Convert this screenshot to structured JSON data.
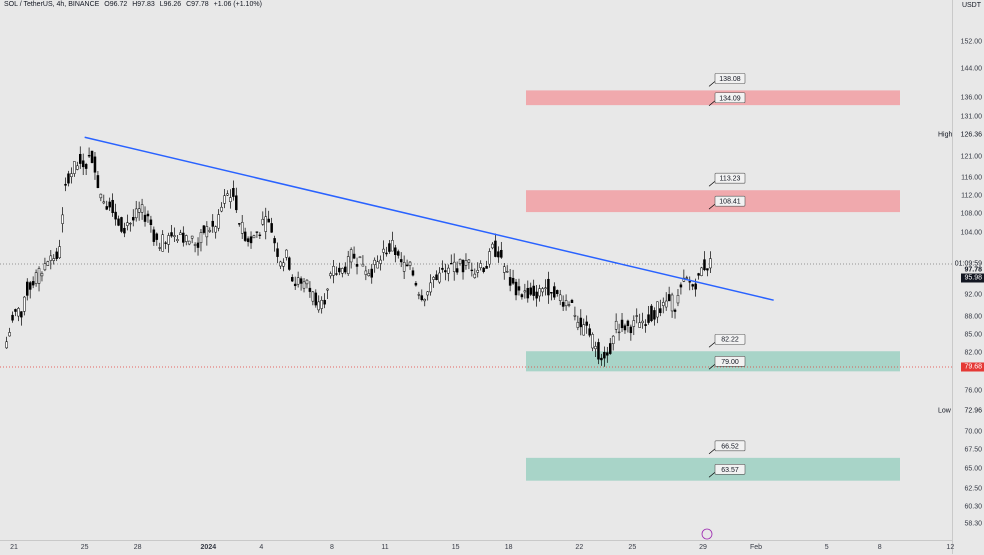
{
  "legend": {
    "symbol": "SOL / TetherUS, 4h, BINANCE",
    "open": "O96.72",
    "high": "H97.83",
    "low": "L96.26",
    "close": "C97.78",
    "change": "+1.06 (+1.10%)"
  },
  "currency": "USDT",
  "chart_data": {
    "type": "candlestick",
    "symbol": "SOL / TetherUS",
    "interval": "4h",
    "exchange": "BINANCE",
    "x_ticks": [
      "21",
      "25",
      "28",
      "2024",
      "4",
      "8",
      "11",
      "15",
      "18",
      "22",
      "25",
      "29",
      "Feb",
      "5",
      "8",
      "12"
    ],
    "y_ticks": [
      "152.00",
      "144.00",
      "136.00",
      "131.00",
      "121.00",
      "116.00",
      "112.00",
      "108.00",
      "104.00",
      "97.78",
      "92.00",
      "88.00",
      "85.00",
      "82.00",
      "79.68",
      "76.00",
      "72.96",
      "70.00",
      "67.50",
      "65.00",
      "62.50",
      "60.30",
      "58.30"
    ],
    "y_scale": "log",
    "y_range": [
      56.5,
      162
    ],
    "zones": [
      {
        "kind": "resistance",
        "color": "#f0a9ad",
        "bottom": 134.09,
        "top": 138.08,
        "labels": [
          "138.08",
          "134.09"
        ]
      },
      {
        "kind": "resistance",
        "color": "#f0a9ad",
        "bottom": 108.41,
        "top": 113.23,
        "labels": [
          "113.23",
          "108.41"
        ]
      },
      {
        "kind": "support",
        "color": "#a8d4c8",
        "bottom": 79.0,
        "top": 82.22,
        "labels": [
          "82.22",
          "79.00"
        ]
      },
      {
        "kind": "support",
        "color": "#a8d4c8",
        "bottom": 63.57,
        "top": 66.52,
        "labels": [
          "66.52",
          "63.57"
        ]
      }
    ],
    "trendline": {
      "color": "#2962ff",
      "start": {
        "x": "Dec 25",
        "y": 125.8
      },
      "end": {
        "x": "Feb 2",
        "y": 91.0
      }
    },
    "price_lines": [
      {
        "label": "High",
        "value": "126.36"
      },
      {
        "label": "Low",
        "value": "72.96"
      }
    ],
    "last_price": {
      "value": "97.78",
      "countdown": "01:09:59",
      "color": "#131722"
    },
    "prev_close": {
      "value": "95.98",
      "color": "#131722"
    },
    "ref_price": {
      "value": "79.68",
      "color": "#e53935"
    },
    "daily_closes": [
      {
        "date": "Dec 21",
        "close": 89.0
      },
      {
        "date": "Dec 22",
        "close": 95.5
      },
      {
        "date": "Dec 23",
        "close": 99.0
      },
      {
        "date": "Dec 24",
        "close": 118.0
      },
      {
        "date": "Dec 25",
        "close": 121.0
      },
      {
        "date": "Dec 26",
        "close": 111.0
      },
      {
        "date": "Dec 27",
        "close": 106.0
      },
      {
        "date": "Dec 28",
        "close": 108.0
      },
      {
        "date": "Dec 29",
        "close": 102.0
      },
      {
        "date": "Dec 30",
        "close": 104.0
      },
      {
        "date": "Dec 31",
        "close": 102.0
      },
      {
        "date": "Jan 1",
        "close": 105.0
      },
      {
        "date": "Jan 2",
        "close": 112.0
      },
      {
        "date": "Jan 3",
        "close": 103.0
      },
      {
        "date": "Jan 4",
        "close": 106.0
      },
      {
        "date": "Jan 5",
        "close": 99.0
      },
      {
        "date": "Jan 6",
        "close": 94.0
      },
      {
        "date": "Jan 7",
        "close": 91.0
      },
      {
        "date": "Jan 8",
        "close": 96.0
      },
      {
        "date": "Jan 9",
        "close": 99.0
      },
      {
        "date": "Jan 10",
        "close": 97.0
      },
      {
        "date": "Jan 11",
        "close": 101.0
      },
      {
        "date": "Jan 12",
        "close": 96.5
      },
      {
        "date": "Jan 13",
        "close": 92.5
      },
      {
        "date": "Jan 14",
        "close": 96.0
      },
      {
        "date": "Jan 15",
        "close": 97.5
      },
      {
        "date": "Jan 16",
        "close": 97.0
      },
      {
        "date": "Jan 17",
        "close": 100.5
      },
      {
        "date": "Jan 18",
        "close": 93.5
      },
      {
        "date": "Jan 19",
        "close": 92.5
      },
      {
        "date": "Jan 20",
        "close": 93.5
      },
      {
        "date": "Jan 21",
        "close": 91.0
      },
      {
        "date": "Jan 22",
        "close": 86.0
      },
      {
        "date": "Jan 23",
        "close": 82.0
      },
      {
        "date": "Jan 24",
        "close": 86.5
      },
      {
        "date": "Jan 25",
        "close": 87.0
      },
      {
        "date": "Jan 26",
        "close": 89.5
      },
      {
        "date": "Jan 27",
        "close": 90.5
      },
      {
        "date": "Jan 28",
        "close": 94.0
      },
      {
        "date": "Jan 29",
        "close": 97.8
      }
    ]
  }
}
